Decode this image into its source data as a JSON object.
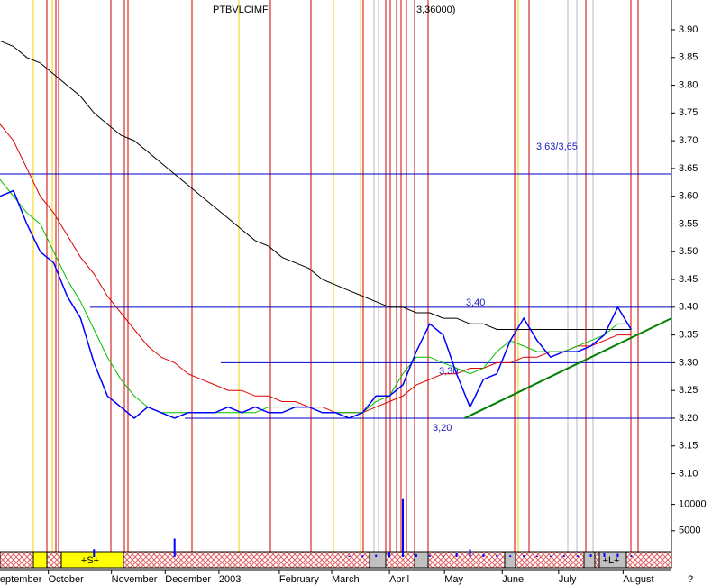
{
  "chart_data": {
    "type": "line",
    "title": "PTBVLCIMF",
    "subtitle": "3,36000)",
    "x": [
      -1,
      0,
      1,
      2,
      3,
      4,
      5,
      6,
      7,
      8,
      9,
      10,
      11,
      12,
      13,
      14,
      15,
      16,
      17,
      18,
      19,
      20,
      21,
      22,
      23,
      24,
      25,
      26,
      27,
      28,
      29,
      30,
      31,
      32,
      33,
      34,
      35,
      36,
      37,
      38,
      39,
      40,
      41,
      42,
      43,
      44,
      45,
      46
    ],
    "series": [
      {
        "color": "#000000",
        "values": [
          3.88,
          3.87,
          3.85,
          3.84,
          3.82,
          3.8,
          3.78,
          3.75,
          3.73,
          3.71,
          3.7,
          3.68,
          3.66,
          3.64,
          3.62,
          3.6,
          3.58,
          3.56,
          3.54,
          3.52,
          3.51,
          3.49,
          3.48,
          3.47,
          3.45,
          3.44,
          3.43,
          3.42,
          3.41,
          3.4,
          3.4,
          3.39,
          3.39,
          3.38,
          3.38,
          3.37,
          3.37,
          3.36,
          3.36,
          3.36,
          3.36,
          3.36,
          3.36,
          3.36,
          3.36,
          3.36,
          3.36,
          3.36
        ]
      },
      {
        "color": "#e00000",
        "values": [
          3.73,
          3.7,
          3.65,
          3.6,
          3.57,
          3.53,
          3.49,
          3.46,
          3.42,
          3.39,
          3.36,
          3.33,
          3.31,
          3.3,
          3.28,
          3.27,
          3.26,
          3.25,
          3.25,
          3.24,
          3.24,
          3.23,
          3.23,
          3.22,
          3.22,
          3.21,
          3.21,
          3.21,
          3.22,
          3.23,
          3.24,
          3.26,
          3.27,
          3.28,
          3.28,
          3.29,
          3.29,
          3.3,
          3.3,
          3.31,
          3.31,
          3.32,
          3.32,
          3.33,
          3.33,
          3.34,
          3.35,
          3.35
        ]
      },
      {
        "color": "#00c000",
        "values": [
          3.63,
          3.6,
          3.57,
          3.55,
          3.5,
          3.45,
          3.41,
          3.36,
          3.31,
          3.27,
          3.24,
          3.22,
          3.21,
          3.21,
          3.21,
          3.21,
          3.21,
          3.21,
          3.21,
          3.21,
          3.22,
          3.22,
          3.22,
          3.22,
          3.21,
          3.21,
          3.21,
          3.21,
          3.23,
          3.24,
          3.28,
          3.31,
          3.31,
          3.3,
          3.29,
          3.28,
          3.29,
          3.32,
          3.34,
          3.33,
          3.32,
          3.32,
          3.32,
          3.33,
          3.34,
          3.35,
          3.37,
          3.37
        ]
      },
      {
        "color": "#0000ff",
        "values": [
          3.6,
          3.61,
          3.55,
          3.5,
          3.48,
          3.42,
          3.38,
          3.3,
          3.24,
          3.22,
          3.2,
          3.22,
          3.21,
          3.2,
          3.21,
          3.21,
          3.21,
          3.22,
          3.21,
          3.22,
          3.21,
          3.21,
          3.22,
          3.22,
          3.21,
          3.21,
          3.2,
          3.21,
          3.24,
          3.24,
          3.26,
          3.32,
          3.37,
          3.35,
          3.28,
          3.22,
          3.27,
          3.28,
          3.34,
          3.38,
          3.34,
          3.31,
          3.32,
          3.32,
          3.33,
          3.35,
          3.4,
          3.36
        ]
      },
      {
        "color": "#0000ff",
        "axis": "y2",
        "values": [
          0,
          0,
          0,
          0,
          0,
          0,
          0,
          1500,
          0,
          0,
          0,
          0,
          0,
          3500,
          0,
          0,
          0,
          0,
          0,
          0,
          0,
          0,
          0,
          0,
          0,
          0,
          200,
          300,
          400,
          1000,
          11000,
          500,
          300,
          200,
          800,
          1500,
          500,
          400,
          300,
          300,
          200,
          200,
          300,
          300,
          500,
          800,
          600,
          300
        ]
      }
    ],
    "xlim": [
      -1,
      49
    ],
    "xticks": [
      {
        "value": -1.5,
        "label": "September"
      },
      {
        "value": 2.6,
        "label": "October"
      },
      {
        "value": 7.3,
        "label": "November"
      },
      {
        "value": 11.3,
        "label": "December"
      },
      {
        "value": 15.3,
        "label": "2003"
      },
      {
        "value": 19.8,
        "label": "February"
      },
      {
        "value": 23.7,
        "label": "March"
      },
      {
        "value": 28,
        "label": "April"
      },
      {
        "value": 32.1,
        "label": "May"
      },
      {
        "value": 36.4,
        "label": "June"
      },
      {
        "value": 40.6,
        "label": "July"
      },
      {
        "value": 45.4,
        "label": "August"
      }
    ],
    "ylim": [
      3.07,
      3.95
    ],
    "yticks": [
      {
        "value": 3.1,
        "label": "3.10"
      },
      {
        "value": 3.15,
        "label": "3.15"
      },
      {
        "value": 3.2,
        "label": "3.20"
      },
      {
        "value": 3.25,
        "label": "3.25"
      },
      {
        "value": 3.3,
        "label": "3.30"
      },
      {
        "value": 3.35,
        "label": "3.35"
      },
      {
        "value": 3.4,
        "label": "3.40"
      },
      {
        "value": 3.45,
        "label": "3.45"
      },
      {
        "value": 3.5,
        "label": "3.50"
      },
      {
        "value": 3.55,
        "label": "3.55"
      },
      {
        "value": 3.6,
        "label": "3.60"
      },
      {
        "value": 3.65,
        "label": "3.65"
      },
      {
        "value": 3.7,
        "label": "3.70"
      },
      {
        "value": 3.75,
        "label": "3.75"
      },
      {
        "value": 3.8,
        "label": "3.80"
      },
      {
        "value": 3.85,
        "label": "3.85"
      },
      {
        "value": 3.9,
        "label": "3.90"
      }
    ],
    "y2lim": [
      0,
      12500
    ],
    "y2ticks": [
      5000,
      10000
    ],
    "levels": [
      3.64,
      3.4,
      3.3,
      3.2
    ],
    "annotations": [
      "3,63/3,65",
      "3,40",
      "3,30",
      "3,20"
    ],
    "trendline": {
      "x": [
        33.6,
        49
      ],
      "values": [
        3.2,
        3.38
      ],
      "color": "#008000"
    },
    "strip": [
      "+S+",
      "+L+"
    ],
    "corner": "?"
  }
}
